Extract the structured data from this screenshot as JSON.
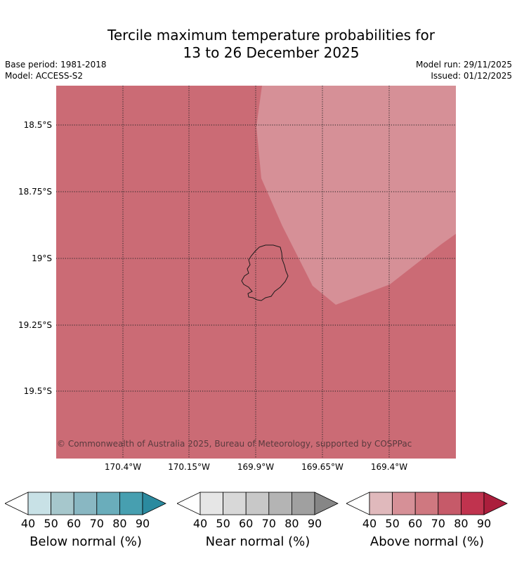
{
  "title": {
    "line1": "Tercile maximum temperature probabilities for",
    "line2": "13 to 26 December 2025"
  },
  "meta": {
    "base_period": "Base period: 1981-2018",
    "model": "Model: ACCESS-S2",
    "model_run": "Model run: 29/11/2025",
    "issued": "Issued: 01/12/2025"
  },
  "map": {
    "latitude_labels": [
      "18.5°S",
      "18.75°S",
      "19°S",
      "19.25°S",
      "19.5°S"
    ],
    "longitude_labels": [
      "170.4°W",
      "170.15°W",
      "169.9°W",
      "169.65°W",
      "169.4°W"
    ],
    "copyright": "© Commonwealth of Australia 2025, Bureau of Meteorology, supported by COSPPac",
    "colors": {
      "above_60_70": "#cb6b75",
      "above_50_60": "#d69097"
    }
  },
  "colorbars": [
    {
      "title": "Below normal (%)",
      "ticks": [
        "40",
        "50",
        "60",
        "70",
        "80",
        "90"
      ],
      "colors": [
        "#c8e1e6",
        "#a6c7cc",
        "#89b7c2",
        "#6aadbb",
        "#479fb0",
        "#2b8a9f"
      ]
    },
    {
      "title": "Near normal (%)",
      "ticks": [
        "40",
        "50",
        "60",
        "70",
        "80",
        "90"
      ],
      "colors": [
        "#e6e6e6",
        "#d8d8d8",
        "#c8c8c8",
        "#b4b4b4",
        "#a0a0a0",
        "#868686"
      ]
    },
    {
      "title": "Above normal (%)",
      "ticks": [
        "40",
        "50",
        "60",
        "70",
        "80",
        "90"
      ],
      "colors": [
        "#e0b9bc",
        "#d69097",
        "#cf7880",
        "#c65a69",
        "#c0334e",
        "#ab1e3c"
      ]
    }
  ]
}
